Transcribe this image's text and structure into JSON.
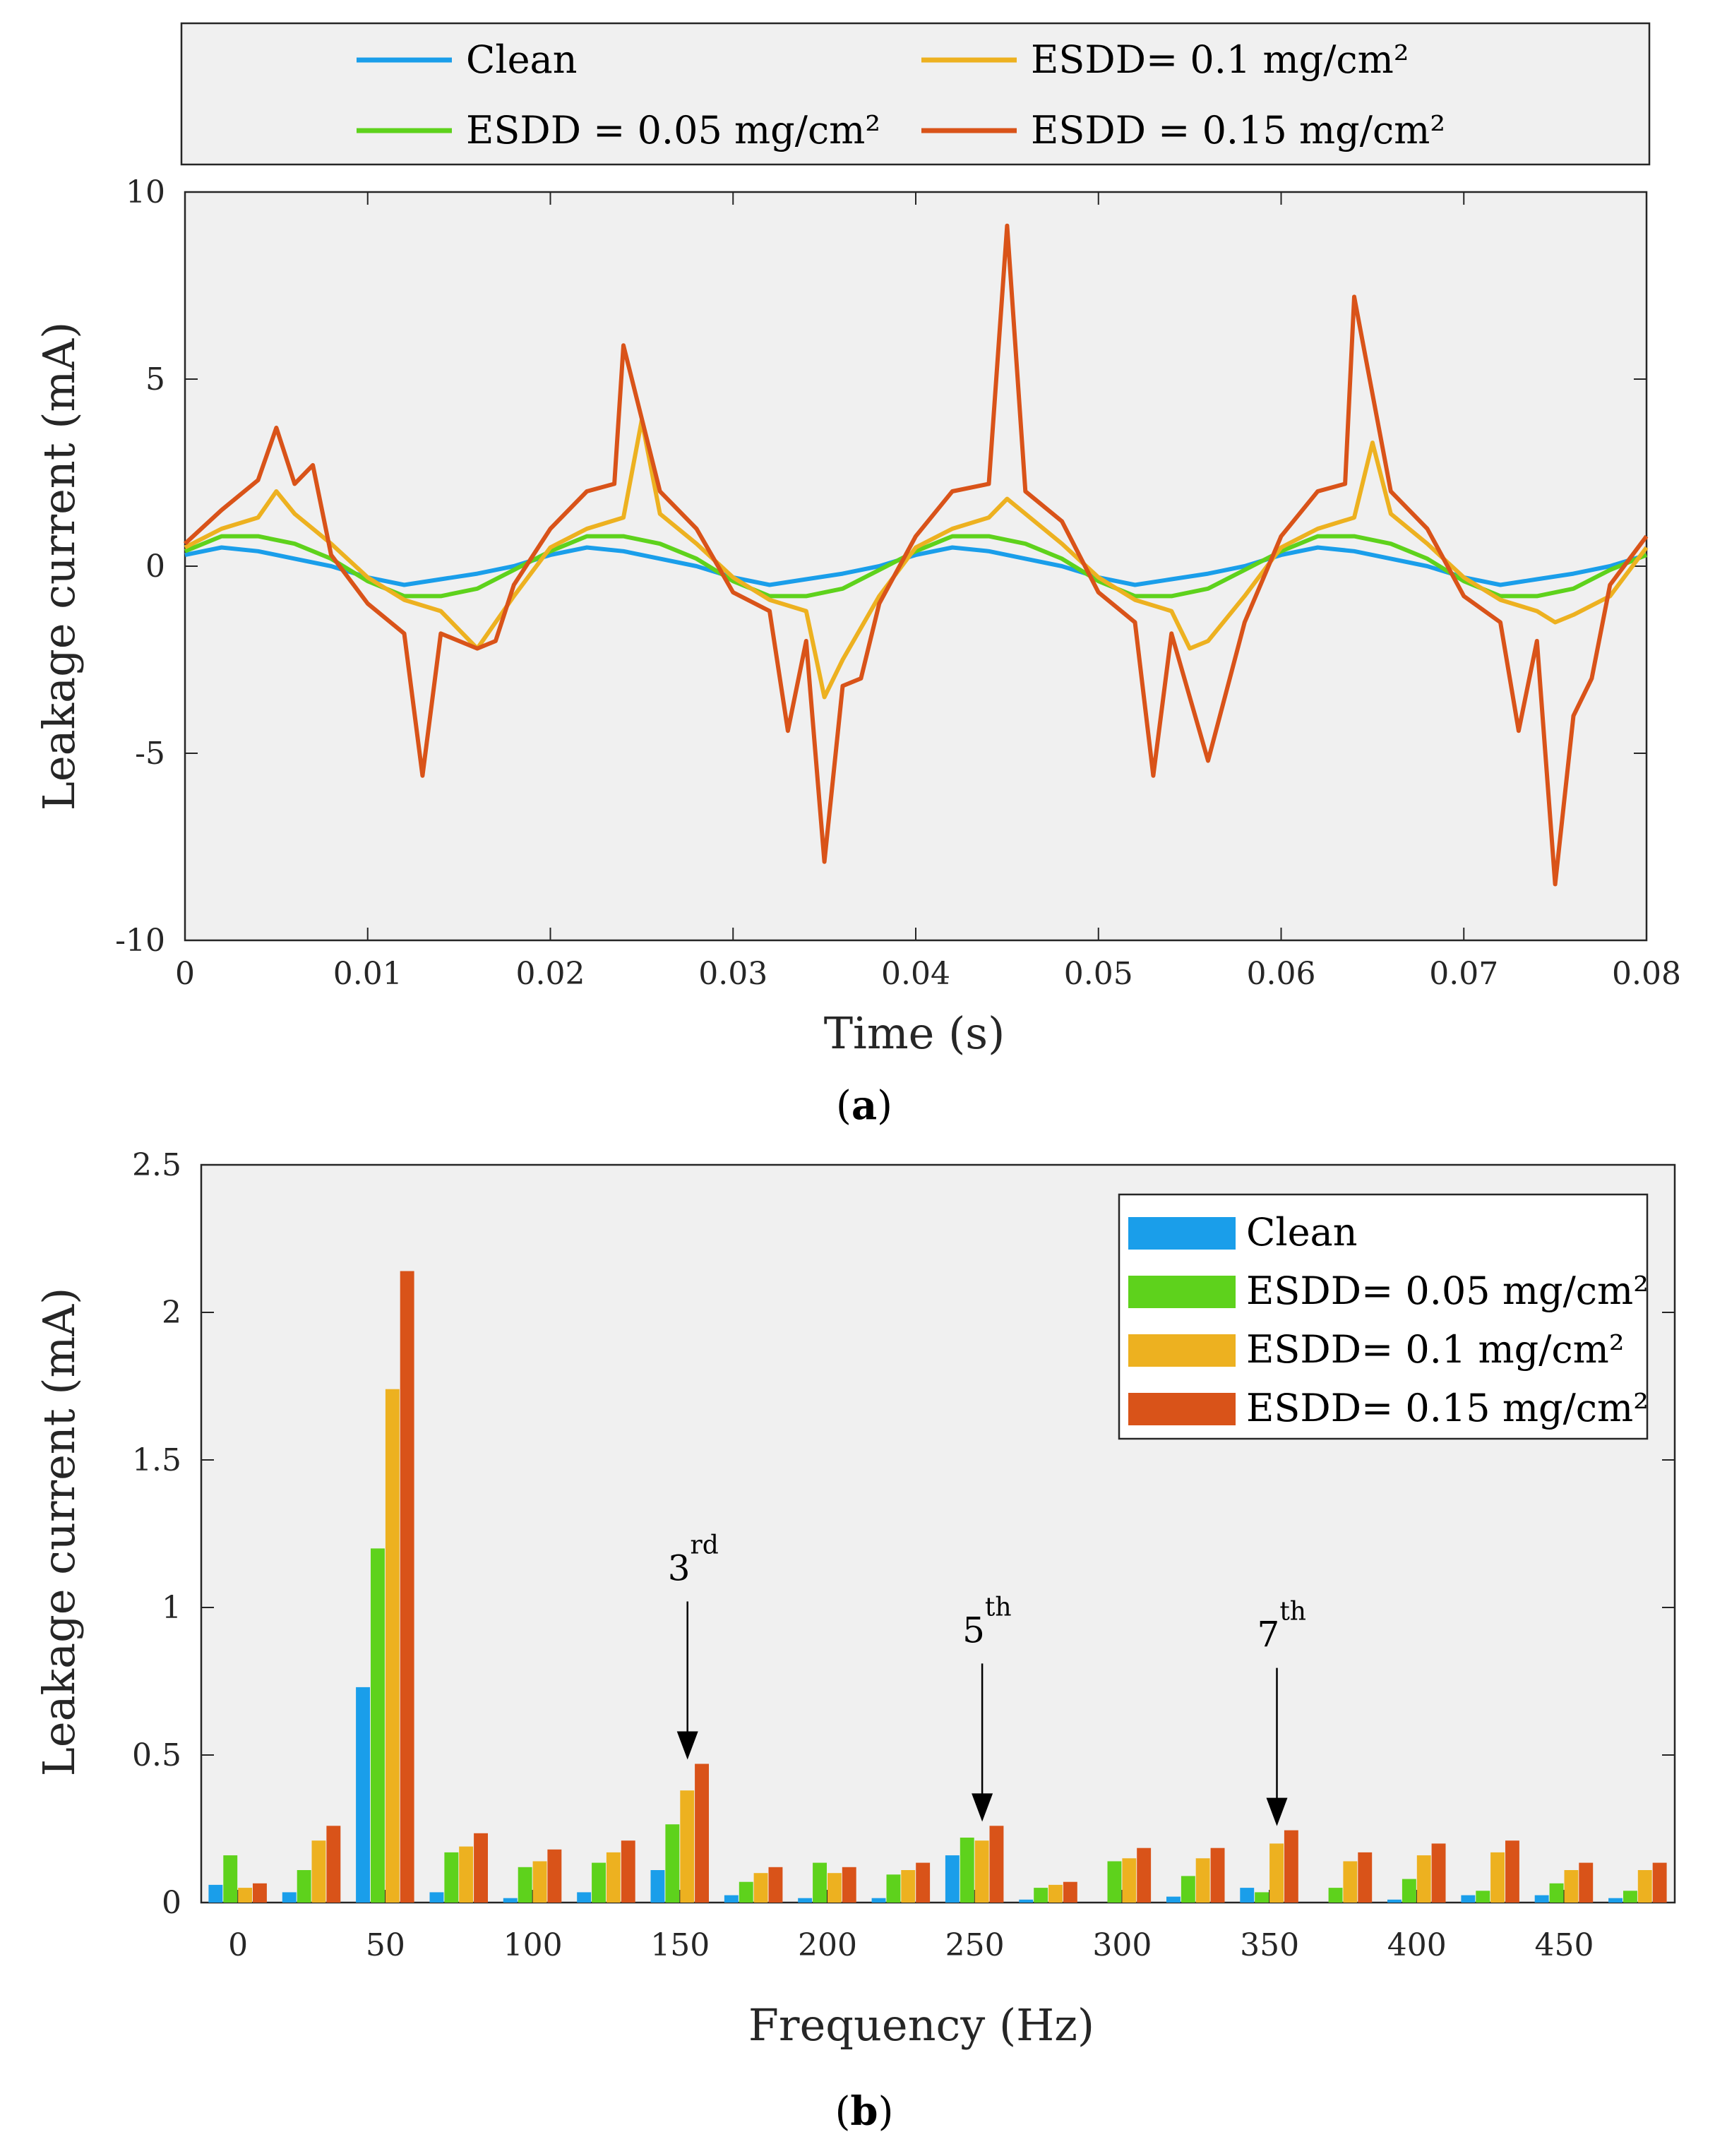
{
  "chart_data": [
    {
      "type": "line",
      "caption": "(a)",
      "caption_letter": "a",
      "xlabel": "Time (s)",
      "ylabel": "Leakage current (mA)",
      "xlim": [
        0,
        0.08
      ],
      "ylim": [
        -10,
        10
      ],
      "xticks": [
        "0",
        "0.01",
        "0.02",
        "0.03",
        "0.04",
        "0.05",
        "0.06",
        "0.07",
        "0.08"
      ],
      "yticks": [
        "10",
        "5",
        "0",
        "-5",
        "-10"
      ],
      "legend_position": "top (outside)",
      "series": [
        {
          "name": "Clean",
          "color": "#1a9eea",
          "x": [
            0,
            0.002,
            0.004,
            0.006,
            0.008,
            0.01,
            0.012,
            0.014,
            0.016,
            0.018,
            0.02,
            0.022,
            0.024,
            0.026,
            0.028,
            0.03,
            0.032,
            0.034,
            0.036,
            0.038,
            0.04,
            0.042,
            0.044,
            0.046,
            0.048,
            0.05,
            0.052,
            0.054,
            0.056,
            0.058,
            0.06,
            0.062,
            0.064,
            0.066,
            0.068,
            0.07,
            0.072,
            0.074,
            0.076,
            0.078,
            0.08
          ],
          "y": [
            0.3,
            0.5,
            0.4,
            0.2,
            0.0,
            -0.3,
            -0.5,
            -0.35,
            -0.2,
            0.0,
            0.3,
            0.5,
            0.4,
            0.2,
            0.0,
            -0.3,
            -0.5,
            -0.35,
            -0.2,
            0.0,
            0.3,
            0.5,
            0.4,
            0.2,
            0.0,
            -0.3,
            -0.5,
            -0.35,
            -0.2,
            0.0,
            0.3,
            0.5,
            0.4,
            0.2,
            0.0,
            -0.3,
            -0.5,
            -0.35,
            -0.2,
            0.0,
            0.3
          ]
        },
        {
          "name": "ESDD = 0.05 mg/cm²",
          "color": "#5ed21c",
          "x": [
            0,
            0.002,
            0.004,
            0.006,
            0.008,
            0.01,
            0.012,
            0.014,
            0.016,
            0.018,
            0.02,
            0.022,
            0.024,
            0.026,
            0.028,
            0.03,
            0.032,
            0.034,
            0.036,
            0.038,
            0.04,
            0.042,
            0.044,
            0.046,
            0.048,
            0.05,
            0.052,
            0.054,
            0.056,
            0.058,
            0.06,
            0.062,
            0.064,
            0.066,
            0.068,
            0.07,
            0.072,
            0.074,
            0.076,
            0.078,
            0.08
          ],
          "y": [
            0.4,
            0.8,
            0.8,
            0.6,
            0.2,
            -0.4,
            -0.8,
            -0.8,
            -0.6,
            -0.1,
            0.4,
            0.8,
            0.8,
            0.6,
            0.2,
            -0.4,
            -0.8,
            -0.8,
            -0.6,
            -0.1,
            0.4,
            0.8,
            0.8,
            0.6,
            0.2,
            -0.4,
            -0.8,
            -0.8,
            -0.6,
            -0.1,
            0.4,
            0.8,
            0.8,
            0.6,
            0.2,
            -0.4,
            -0.8,
            -0.8,
            -0.6,
            -0.1,
            0.3
          ]
        },
        {
          "name": "ESDD= 0.1 mg/cm²",
          "color": "#edb120",
          "x": [
            0,
            0.002,
            0.004,
            0.005,
            0.006,
            0.008,
            0.01,
            0.012,
            0.014,
            0.016,
            0.018,
            0.02,
            0.022,
            0.024,
            0.025,
            0.026,
            0.028,
            0.03,
            0.032,
            0.034,
            0.035,
            0.036,
            0.038,
            0.04,
            0.042,
            0.044,
            0.045,
            0.046,
            0.048,
            0.05,
            0.052,
            0.054,
            0.055,
            0.056,
            0.058,
            0.06,
            0.062,
            0.064,
            0.065,
            0.066,
            0.068,
            0.07,
            0.072,
            0.074,
            0.075,
            0.076,
            0.078,
            0.08
          ],
          "y": [
            0.5,
            1.0,
            1.3,
            2.0,
            1.4,
            0.6,
            -0.3,
            -0.9,
            -1.2,
            -2.2,
            -0.8,
            0.5,
            1.0,
            1.3,
            3.9,
            1.4,
            0.6,
            -0.3,
            -0.9,
            -1.2,
            -3.5,
            -2.5,
            -0.8,
            0.5,
            1.0,
            1.3,
            1.8,
            1.4,
            0.6,
            -0.3,
            -0.9,
            -1.2,
            -2.2,
            -2.0,
            -0.8,
            0.5,
            1.0,
            1.3,
            3.3,
            1.4,
            0.6,
            -0.3,
            -0.9,
            -1.2,
            -1.5,
            -1.3,
            -0.8,
            0.5
          ]
        },
        {
          "name": "ESDD = 0.15 mg/cm²",
          "color": "#d95319",
          "x": [
            0,
            0.002,
            0.004,
            0.005,
            0.006,
            0.007,
            0.008,
            0.01,
            0.012,
            0.013,
            0.014,
            0.016,
            0.017,
            0.018,
            0.02,
            0.022,
            0.0235,
            0.024,
            0.026,
            0.028,
            0.03,
            0.032,
            0.033,
            0.034,
            0.035,
            0.036,
            0.037,
            0.038,
            0.04,
            0.042,
            0.044,
            0.045,
            0.046,
            0.048,
            0.05,
            0.052,
            0.053,
            0.054,
            0.056,
            0.058,
            0.06,
            0.062,
            0.0635,
            0.064,
            0.066,
            0.068,
            0.07,
            0.072,
            0.073,
            0.074,
            0.075,
            0.076,
            0.077,
            0.078,
            0.08
          ],
          "y": [
            0.6,
            1.5,
            2.3,
            3.7,
            2.2,
            2.7,
            0.3,
            -1.0,
            -1.8,
            -5.6,
            -1.8,
            -2.2,
            -2.0,
            -0.5,
            1.0,
            2.0,
            2.2,
            5.9,
            2.0,
            1.0,
            -0.7,
            -1.2,
            -4.4,
            -2.0,
            -7.9,
            -3.2,
            -3.0,
            -1.0,
            0.8,
            2.0,
            2.2,
            9.1,
            2.0,
            1.2,
            -0.7,
            -1.5,
            -5.6,
            -1.8,
            -5.2,
            -1.5,
            0.8,
            2.0,
            2.2,
            7.2,
            2.0,
            1.0,
            -0.8,
            -1.5,
            -4.4,
            -2.0,
            -8.5,
            -4.0,
            -3.0,
            -0.5,
            0.8
          ]
        }
      ]
    },
    {
      "type": "bar",
      "caption": "(b)",
      "caption_letter": "b",
      "xlabel": "Frequency (Hz)",
      "ylabel": "Leakage current (mA)",
      "ylim": [
        0,
        2.5
      ],
      "xlim": [
        -12.5,
        487.5
      ],
      "xticks": [
        "0",
        "50",
        "100",
        "150",
        "200",
        "250",
        "300",
        "350",
        "400",
        "450"
      ],
      "yticks": [
        "2.5",
        "2",
        "1.5",
        "1",
        "0.5",
        "0"
      ],
      "legend_position": "top-right",
      "frequencies": [
        0,
        25,
        50,
        75,
        100,
        125,
        150,
        175,
        200,
        225,
        250,
        275,
        300,
        325,
        350,
        375,
        400,
        425,
        450,
        475
      ],
      "series": [
        {
          "name": "Clean",
          "color": "#1a9eea",
          "values": [
            0.06,
            0.035,
            0.73,
            0.035,
            0.015,
            0.035,
            0.11,
            0.025,
            0.015,
            0.015,
            0.16,
            0.01,
            0.0,
            0.02,
            0.05,
            0.0,
            0.01,
            0.025,
            0.025,
            0.015
          ]
        },
        {
          "name": "ESDD= 0.05 mg/cm²",
          "color": "#5ed21c",
          "values": [
            0.16,
            0.11,
            1.2,
            0.17,
            0.12,
            0.135,
            0.265,
            0.07,
            0.135,
            0.095,
            0.22,
            0.05,
            0.14,
            0.09,
            0.035,
            0.05,
            0.08,
            0.04,
            0.065,
            0.04
          ]
        },
        {
          "name": "ESDD= 0.1 mg/cm²",
          "color": "#edb120",
          "values": [
            0.05,
            0.21,
            1.74,
            0.19,
            0.14,
            0.17,
            0.38,
            0.1,
            0.1,
            0.11,
            0.21,
            0.06,
            0.15,
            0.15,
            0.2,
            0.14,
            0.16,
            0.17,
            0.11,
            0.11
          ]
        },
        {
          "name": "ESDD= 0.15 mg/cm²",
          "color": "#d95319",
          "values": [
            0.065,
            0.26,
            2.14,
            0.235,
            0.18,
            0.21,
            0.47,
            0.12,
            0.12,
            0.135,
            0.26,
            0.07,
            0.185,
            0.185,
            0.245,
            0.17,
            0.2,
            0.21,
            0.135,
            0.135
          ]
        }
      ],
      "annotations": [
        {
          "base": "3",
          "sup": "rd",
          "frequency": 150,
          "value": 0.47
        },
        {
          "base": "5",
          "sup": "th",
          "frequency": 250,
          "value": 0.26
        },
        {
          "base": "7",
          "sup": "th",
          "frequency": 350,
          "value": 0.245
        }
      ]
    }
  ]
}
